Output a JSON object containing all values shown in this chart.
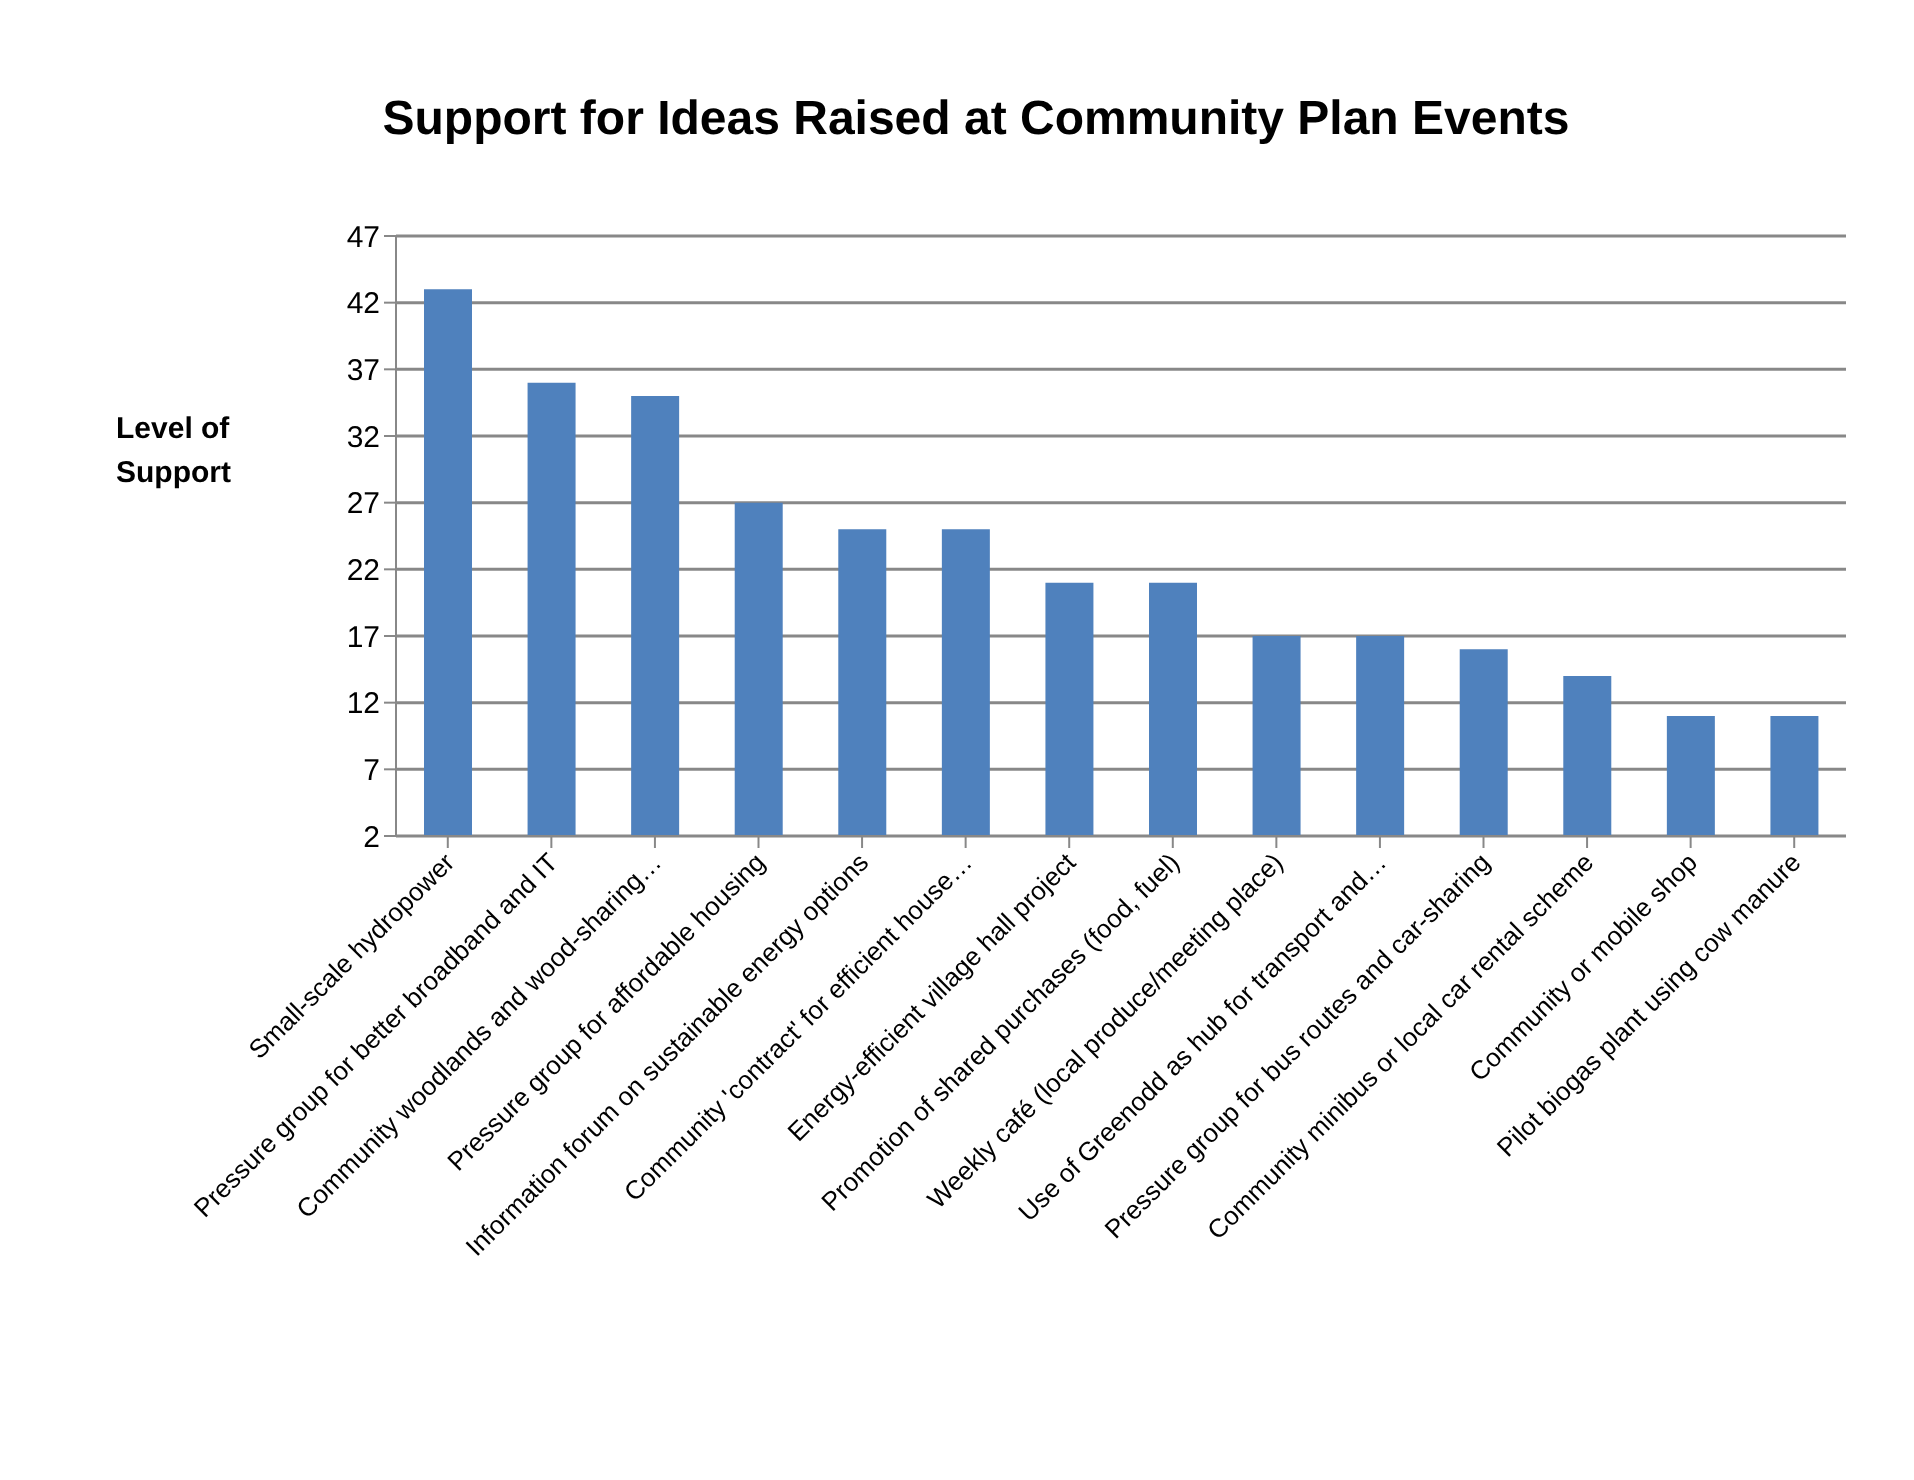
{
  "chart_data": {
    "type": "bar",
    "title": "Support for Ideas Raised at Community Plan Events",
    "ylabel": "Level of Support",
    "categories": [
      "Small-scale hydropower",
      "Pressure group for better broadband and IT",
      "Community woodlands and wood-sharing…",
      "Pressure group for affordable housing",
      "Information forum on sustainable energy options",
      "Community 'contract' for efficient house…",
      "Energy-efficient village hall project",
      "Promotion of shared purchases (food, fuel)",
      "Weekly café (local produce/meeting place)",
      "Use of Greenodd as hub for transport and…",
      "Pressure group for bus routes and car-sharing",
      "Community minibus or local car rental scheme",
      "Community or mobile shop",
      "Pilot biogas plant using cow manure"
    ],
    "values": [
      43,
      36,
      35,
      27,
      25,
      25,
      21,
      21,
      17,
      17,
      16,
      14,
      11,
      11
    ],
    "color": "#4f81bd",
    "ylim": [
      2,
      47
    ],
    "yticks": [
      2,
      7,
      12,
      17,
      22,
      27,
      32,
      37,
      42,
      47
    ],
    "grid": "y"
  }
}
